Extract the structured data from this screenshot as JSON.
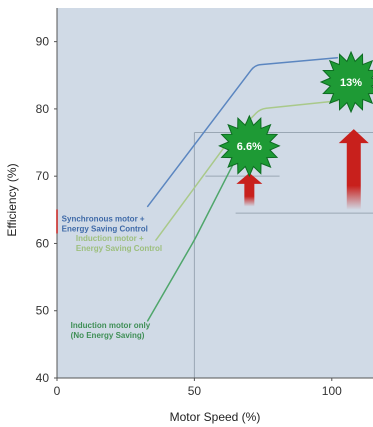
{
  "chart_data": {
    "type": "line",
    "xlabel": "Motor Speed (%)",
    "ylabel": "Efficiency (%)",
    "xlim": [
      0,
      115
    ],
    "ylim": [
      40,
      95
    ],
    "x_ticks": [
      0,
      50,
      100
    ],
    "x_tick_labels": [
      "0",
      "50",
      "100"
    ],
    "y_ticks": [
      40,
      50,
      60,
      70,
      80,
      90
    ],
    "y_tick_labels": [
      "40",
      "50",
      "60",
      "70",
      "80",
      "90"
    ],
    "grid": false,
    "background": "#d0dae6",
    "series": [
      {
        "name_lines": [
          "Synchronous motor +",
          "Energy Saving Control"
        ],
        "color": "#5b86c0",
        "label_color": "#3f6aa8",
        "points": [
          [
            33,
            65.5
          ],
          [
            72,
            86.5
          ],
          [
            102,
            87.6
          ]
        ]
      },
      {
        "name_lines": [
          "Induction motor +",
          "Energy Saving Control"
        ],
        "color": "#a9c98a",
        "label_color": "#9dbf7d",
        "points": [
          [
            36,
            60.5
          ],
          [
            63,
            75.5
          ],
          [
            74,
            80
          ],
          [
            102,
            81.2
          ]
        ]
      },
      {
        "name_lines": [
          "Induction motor only",
          "(No Energy Saving)"
        ],
        "color": "#4fa66b",
        "label_color": "#3f8f56",
        "points": [
          [
            33,
            48.5
          ],
          [
            50,
            60.5
          ],
          [
            65,
            72.5
          ],
          [
            70,
            76
          ]
        ]
      }
    ],
    "reference_lines": [
      {
        "type": "vertical",
        "x": 50,
        "y_from": 40,
        "y_to": 76.5
      },
      {
        "type": "horizontal",
        "y": 76.5,
        "x_from": 50,
        "x_to": 115
      },
      {
        "type": "horizontal",
        "y": 70,
        "x_from": 54,
        "x_to": 81
      },
      {
        "type": "horizontal",
        "y": 64.5,
        "x_from": 65,
        "x_to": 115
      }
    ],
    "annotations": [
      {
        "label": "6.6%",
        "x": 70,
        "y": 74.5,
        "arrow_from": 65.5,
        "arrow_to": 70.5,
        "arrow_x": 70
      },
      {
        "label": "13%",
        "x": 107,
        "y": 84,
        "arrow_from": 65,
        "arrow_to": 77,
        "arrow_x": 108
      }
    ],
    "colors": {
      "axis": "#555555",
      "reference": "#9aa7b4",
      "burst_fill": "#1e9a35",
      "burst_stroke": "#0d6b22",
      "arrow": "#c8201c"
    }
  }
}
